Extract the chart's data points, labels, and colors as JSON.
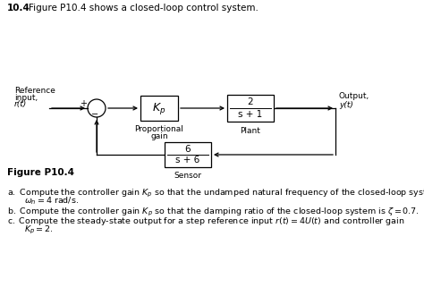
{
  "title_number": "10.4",
  "title_text": "Figure P10.4 shows a closed-loop control system.",
  "figure_label": "Figure P10.4",
  "bg_color": "#ffffff",
  "text_color": "#000000",
  "box_edge_color": "#000000",
  "line_color": "#000000",
  "ref_label": [
    "Reference",
    "input,",
    "r(t)"
  ],
  "out_label": [
    "Output,",
    "y(t)"
  ],
  "kp_label": "$K_p$",
  "kp_sub": [
    "Proportional",
    "gain"
  ],
  "plant_num": "2",
  "plant_den": "s + 1",
  "plant_sub": "Plant",
  "sensor_num": "6",
  "sensor_den": "s + 6",
  "sensor_sub": "Sensor",
  "q_a1": "a. Compute the controller gain $K_p$ so that the undamped natural frequency of the closed-loop system is",
  "q_a2": "  $\\omega_n = 4$ rad/s.",
  "q_b": "b. Compute the controller gain $K_p$ so that the damping ratio of the closed-loop system is $\\zeta = 0.7$.",
  "q_c1": "c. Compute the steady-state output for a step reference input $r(t) = 4U(t)$ and controller gain",
  "q_c2": "  $K_p = 2$."
}
